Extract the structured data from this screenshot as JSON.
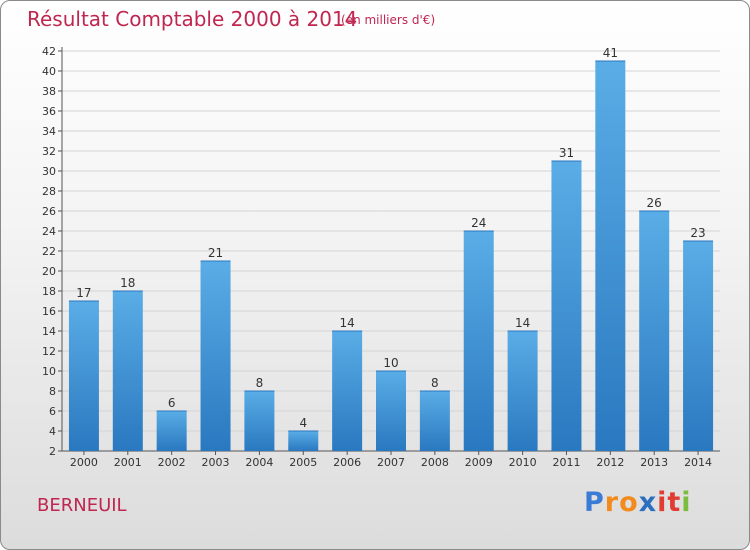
{
  "title": "Résultat Comptable 2000 à 2014",
  "subtitle": "(en milliers d'€)",
  "town": "BERNEUIL",
  "logo": {
    "letters": [
      "P",
      "r",
      "o",
      "x",
      "i",
      "t",
      "i"
    ],
    "colors": [
      "#3a7bd5",
      "#f28a1e",
      "#f28a1e",
      "#2c6fbf",
      "#e03c31",
      "#e03c31",
      "#7bbd3c"
    ]
  },
  "colors": {
    "bar_top": "#5aade6",
    "bar_bottom": "#2a78c0",
    "title": "#c0264f"
  },
  "chart_data": {
    "type": "bar",
    "categories": [
      "2000",
      "2001",
      "2002",
      "2003",
      "2004",
      "2005",
      "2006",
      "2007",
      "2008",
      "2009",
      "2010",
      "2011",
      "2012",
      "2013",
      "2014"
    ],
    "values": [
      17,
      18,
      6,
      21,
      8,
      4,
      14,
      10,
      8,
      24,
      14,
      31,
      41,
      26,
      23
    ],
    "ylim": [
      2,
      42
    ],
    "yticks": [
      2,
      4,
      6,
      8,
      10,
      12,
      14,
      16,
      18,
      20,
      22,
      24,
      26,
      28,
      30,
      32,
      34,
      36,
      38,
      40,
      42
    ],
    "grid": true
  }
}
